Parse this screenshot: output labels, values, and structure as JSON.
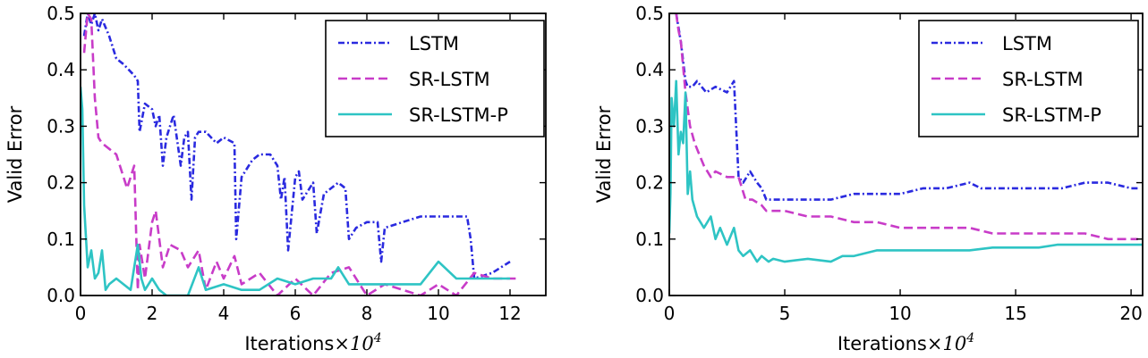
{
  "colors": {
    "lstm": "#2a2adf",
    "srlstm": "#c83cc8",
    "srlstmp": "#2ec4c4"
  },
  "chart_data": [
    {
      "type": "line",
      "xlabel": "Iterations",
      "xlabel_exp": "×10",
      "xlabel_pow": "4",
      "ylabel": "Valid Error",
      "xlim": [
        0,
        13
      ],
      "ylim": [
        0,
        0.5
      ],
      "xticks": [
        0,
        2,
        4,
        6,
        8,
        10,
        12
      ],
      "yticks": [
        0.0,
        0.1,
        0.2,
        0.3,
        0.4,
        0.5
      ],
      "legend_position": "top-right",
      "series": [
        {
          "name": "LSTM",
          "style": "dashdot",
          "color": "#2a2adf",
          "x": [
            0.1,
            0.2,
            0.3,
            0.4,
            0.5,
            0.6,
            0.8,
            1.0,
            1.2,
            1.5,
            1.6,
            1.65,
            1.8,
            2.0,
            2.1,
            2.2,
            2.3,
            2.4,
            2.6,
            2.8,
            2.9,
            3.0,
            3.1,
            3.2,
            3.3,
            3.5,
            3.8,
            4.0,
            4.3,
            4.35,
            4.5,
            4.8,
            5.0,
            5.3,
            5.5,
            5.6,
            5.7,
            5.8,
            6.0,
            6.1,
            6.2,
            6.5,
            6.6,
            6.8,
            7.0,
            7.2,
            7.4,
            7.5,
            7.7,
            8.0,
            8.3,
            8.4,
            8.5,
            9.0,
            9.5,
            10.0,
            10.5,
            10.8,
            10.9,
            11.0,
            11.5,
            12.0
          ],
          "y": [
            0.46,
            0.5,
            0.48,
            0.5,
            0.47,
            0.49,
            0.46,
            0.42,
            0.41,
            0.39,
            0.38,
            0.29,
            0.34,
            0.33,
            0.3,
            0.32,
            0.23,
            0.28,
            0.32,
            0.23,
            0.28,
            0.29,
            0.17,
            0.28,
            0.29,
            0.29,
            0.27,
            0.28,
            0.27,
            0.1,
            0.21,
            0.24,
            0.25,
            0.25,
            0.23,
            0.17,
            0.21,
            0.08,
            0.21,
            0.22,
            0.17,
            0.2,
            0.11,
            0.18,
            0.19,
            0.2,
            0.19,
            0.1,
            0.12,
            0.13,
            0.13,
            0.06,
            0.12,
            0.13,
            0.14,
            0.14,
            0.14,
            0.14,
            0.1,
            0.03,
            0.04,
            0.06
          ]
        },
        {
          "name": "SR-LSTM",
          "style": "dashed",
          "color": "#c83cc8",
          "x": [
            0.1,
            0.2,
            0.3,
            0.4,
            0.5,
            0.6,
            0.8,
            1.0,
            1.3,
            1.5,
            1.6,
            1.65,
            1.8,
            2.0,
            2.1,
            2.3,
            2.5,
            2.8,
            3.0,
            3.3,
            3.5,
            3.8,
            4.0,
            4.3,
            4.5,
            5.0,
            5.5,
            6.0,
            6.5,
            7.0,
            7.5,
            8.0,
            8.5,
            9.0,
            9.5,
            10.0,
            10.5,
            11.0,
            11.5,
            12.0,
            12.2
          ],
          "y": [
            0.43,
            0.5,
            0.49,
            0.35,
            0.28,
            0.27,
            0.26,
            0.25,
            0.19,
            0.23,
            0.01,
            0.09,
            0.03,
            0.13,
            0.15,
            0.05,
            0.09,
            0.08,
            0.05,
            0.08,
            0.01,
            0.06,
            0.03,
            0.07,
            0.02,
            0.04,
            0.0,
            0.03,
            0.0,
            0.04,
            0.05,
            0.0,
            0.02,
            0.01,
            0.0,
            0.02,
            0.0,
            0.04,
            0.03,
            0.03,
            0.03
          ]
        },
        {
          "name": "SR-LSTM-P",
          "style": "solid",
          "color": "#2ec4c4",
          "x": [
            0.0,
            0.05,
            0.1,
            0.2,
            0.3,
            0.4,
            0.5,
            0.6,
            0.7,
            0.8,
            1.0,
            1.2,
            1.4,
            1.6,
            1.7,
            1.8,
            2.0,
            2.2,
            2.4,
            2.6,
            3.0,
            3.3,
            3.5,
            4.0,
            4.5,
            5.0,
            5.5,
            6.0,
            6.5,
            7.0,
            7.2,
            7.5,
            8.0,
            9.0,
            9.5,
            10.0,
            10.5,
            11.0,
            12.0
          ],
          "y": [
            0.37,
            0.33,
            0.16,
            0.05,
            0.08,
            0.03,
            0.04,
            0.08,
            0.01,
            0.02,
            0.03,
            0.02,
            0.01,
            0.09,
            0.03,
            0.01,
            0.03,
            0.01,
            0.0,
            0.0,
            0.0,
            0.05,
            0.01,
            0.02,
            0.01,
            0.01,
            0.03,
            0.02,
            0.03,
            0.03,
            0.05,
            0.02,
            0.02,
            0.02,
            0.02,
            0.06,
            0.03,
            0.03,
            0.03
          ]
        }
      ]
    },
    {
      "type": "line",
      "xlabel": "Iterations",
      "xlabel_exp": "×10",
      "xlabel_pow": "4",
      "ylabel": "Valid Error",
      "xlim": [
        0,
        20.5
      ],
      "ylim": [
        0,
        0.5
      ],
      "xticks": [
        0,
        5,
        10,
        15,
        20
      ],
      "yticks": [
        0.0,
        0.1,
        0.2,
        0.3,
        0.4,
        0.5
      ],
      "legend_position": "top-right",
      "series": [
        {
          "name": "LSTM",
          "style": "dashdot",
          "color": "#2a2adf",
          "x": [
            0.3,
            0.5,
            0.7,
            0.8,
            1.0,
            1.2,
            1.4,
            1.6,
            2.0,
            2.5,
            2.8,
            3.0,
            3.2,
            3.5,
            3.8,
            4.0,
            4.2,
            4.5,
            5.0,
            6.0,
            7.0,
            8.0,
            9.0,
            10.0,
            11.0,
            12.0,
            13.0,
            13.5,
            14.0,
            15.0,
            16.0,
            17.0,
            18.0,
            19.0,
            20.0,
            20.3
          ],
          "y": [
            0.5,
            0.45,
            0.38,
            0.37,
            0.37,
            0.38,
            0.37,
            0.36,
            0.37,
            0.36,
            0.38,
            0.21,
            0.2,
            0.22,
            0.2,
            0.19,
            0.17,
            0.17,
            0.17,
            0.17,
            0.17,
            0.18,
            0.18,
            0.18,
            0.19,
            0.19,
            0.2,
            0.19,
            0.19,
            0.19,
            0.19,
            0.19,
            0.2,
            0.2,
            0.19,
            0.19
          ]
        },
        {
          "name": "SR-LSTM",
          "style": "dashed",
          "color": "#c83cc8",
          "x": [
            0.3,
            0.4,
            0.5,
            0.7,
            0.9,
            1.1,
            1.3,
            1.5,
            1.8,
            2.0,
            2.5,
            3.0,
            3.3,
            3.6,
            4.0,
            4.2,
            4.5,
            5.0,
            6.0,
            7.0,
            8.0,
            9.0,
            10.0,
            11.0,
            12.0,
            13.0,
            14.0,
            15.0,
            16.0,
            17.0,
            18.0,
            19.0,
            20.0,
            20.3
          ],
          "y": [
            0.5,
            0.47,
            0.45,
            0.36,
            0.3,
            0.27,
            0.25,
            0.23,
            0.21,
            0.22,
            0.21,
            0.21,
            0.17,
            0.17,
            0.16,
            0.15,
            0.15,
            0.15,
            0.14,
            0.14,
            0.13,
            0.13,
            0.12,
            0.12,
            0.12,
            0.12,
            0.11,
            0.11,
            0.11,
            0.11,
            0.11,
            0.1,
            0.1,
            0.1
          ]
        },
        {
          "name": "SR-LSTM-P",
          "style": "solid",
          "color": "#2ec4c4",
          "x": [
            0.0,
            0.05,
            0.1,
            0.2,
            0.3,
            0.4,
            0.5,
            0.6,
            0.7,
            0.8,
            0.9,
            1.0,
            1.2,
            1.5,
            1.8,
            2.0,
            2.2,
            2.5,
            2.8,
            3.0,
            3.2,
            3.5,
            3.8,
            4.0,
            4.3,
            4.5,
            5.0,
            6.0,
            7.0,
            7.5,
            8.0,
            9.0,
            10.0,
            11.0,
            12.0,
            13.0,
            14.0,
            15.0,
            16.0,
            16.8,
            17.0,
            18.0,
            19.0,
            20.0,
            20.5
          ],
          "y": [
            0.11,
            0.18,
            0.35,
            0.3,
            0.38,
            0.25,
            0.29,
            0.27,
            0.36,
            0.18,
            0.22,
            0.17,
            0.14,
            0.12,
            0.14,
            0.1,
            0.12,
            0.09,
            0.12,
            0.08,
            0.07,
            0.08,
            0.06,
            0.07,
            0.06,
            0.065,
            0.06,
            0.065,
            0.06,
            0.07,
            0.07,
            0.08,
            0.08,
            0.08,
            0.08,
            0.08,
            0.085,
            0.085,
            0.085,
            0.09,
            0.09,
            0.09,
            0.09,
            0.09,
            0.09
          ]
        }
      ]
    }
  ]
}
